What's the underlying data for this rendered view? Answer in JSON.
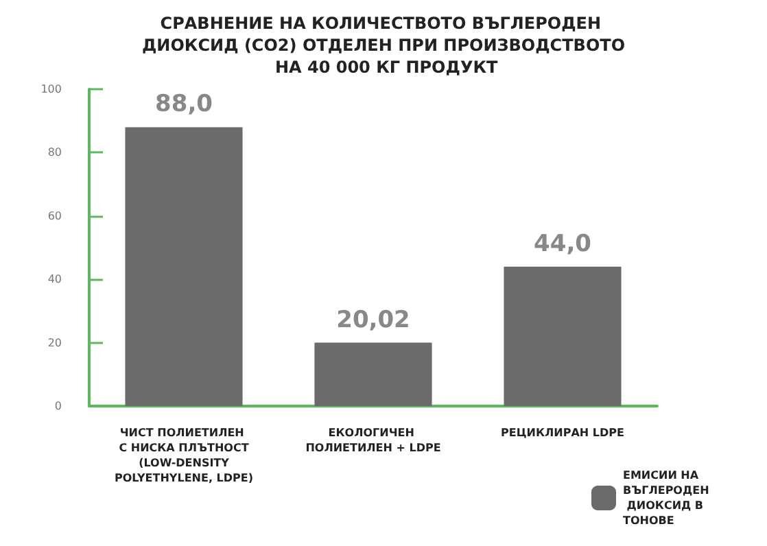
{
  "chart_data": {
    "type": "bar",
    "title": "СРАВНЕНИЕ НА КОЛИЧЕСТВОТО ВЪГЛЕРОДЕН ДИОКСИД (CO2) ОТДЕЛЕН ПРИ ПРОИЗВОДСТВОТО НА 40 000 КГ ПРОДУКТ",
    "categories": [
      "ЧИСТ ПОЛИЕТИЛЕН С НИСКА ПЛЪТНОСТ (LOW-DENSITY POLYETHYLENE, LDPE)",
      "ЕКОЛОГИЧЕН ПОЛИЕТИЛЕН + LDPE",
      "РЕЦИКЛИРАН LDPE"
    ],
    "series": [
      {
        "name": "ЕМИСИИ НА ВЪГЛЕРОДЕН ДИОКСИД В ТОНОВЕ",
        "color": "#6b6b6b",
        "values": [
          88.0,
          20.02,
          44.0
        ],
        "value_labels": [
          "88,0",
          "20,02",
          "44,0"
        ]
      }
    ],
    "ylim": [
      0,
      100
    ],
    "yticks": [
      0,
      20,
      40,
      60,
      80,
      100
    ],
    "grid": false,
    "legend": "bottom right"
  }
}
